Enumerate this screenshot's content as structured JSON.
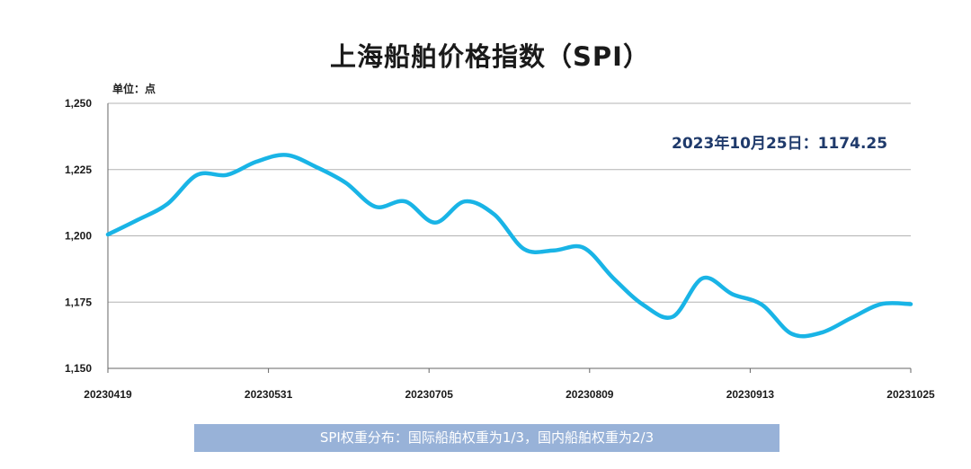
{
  "chart_data": {
    "type": "line",
    "title": "上海船舶价格指数（SPI）",
    "ylabel": "单位：点",
    "ylim": [
      1150,
      1250
    ],
    "yticks": [
      1150,
      1175,
      1200,
      1225,
      1250
    ],
    "ytick_labels": [
      "1,150",
      "1,175",
      "1,200",
      "1,225",
      "1,250"
    ],
    "xtick_labels": [
      "20230419",
      "20230531",
      "20230705",
      "20230809",
      "20230913",
      "20231025"
    ],
    "grid": true,
    "annotation": "2023年10月25日：1174.25",
    "series": [
      {
        "color": "#19b4e6",
        "x": [
          "20230419",
          "20230426",
          "20230503",
          "20230510",
          "20230517",
          "20230524",
          "20230531",
          "20230607",
          "20230614",
          "20230621",
          "20230628",
          "20230705",
          "20230712",
          "20230719",
          "20230726",
          "20230802",
          "20230809",
          "20230816",
          "20230823",
          "20230830",
          "20230906",
          "20230913",
          "20230920",
          "20230927",
          "20231004",
          "20231011",
          "20231018",
          "20231025"
        ],
        "values": [
          1200.5,
          1206,
          1212,
          1223,
          1223,
          1228,
          1230.5,
          1226,
          1220,
          1211,
          1213,
          1205,
          1213,
          1208,
          1195,
          1194.5,
          1195.5,
          1184,
          1174,
          1169.5,
          1184,
          1178,
          1174,
          1163,
          1163.5,
          1169,
          1174.25,
          1174.25
        ]
      }
    ]
  },
  "footnote": "SPI权重分布：国际船舶权重为1/3，国内船舶权重为2/3"
}
